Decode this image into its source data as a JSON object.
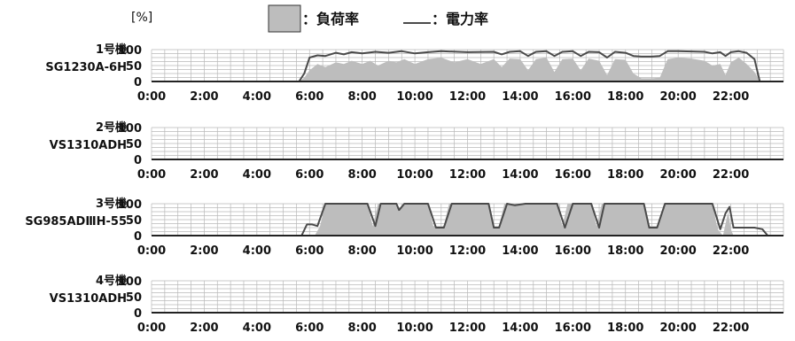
{
  "unit_label": "[%]",
  "legend": {
    "load_label": "：負荷率",
    "power_label": "：電力率",
    "load_color": "#bdbdbd",
    "power_color": "#4a4a4a"
  },
  "chart_data": {
    "type": "area",
    "x_range_hours": [
      0,
      24
    ],
    "x_ticks": [
      "0:00",
      "2:00",
      "4:00",
      "6:00",
      "8:00",
      "10:00",
      "12:00",
      "14:00",
      "16:00",
      "18:00",
      "20:00",
      "22:00"
    ],
    "y_ticks": [
      "100",
      "50",
      "0"
    ],
    "ylim": [
      0,
      100
    ],
    "grid": true,
    "legend_position": "top-center",
    "panels": [
      {
        "line1": "1号機",
        "line2": "SG1230A-6H",
        "load": [
          [
            0,
            0
          ],
          [
            5.6,
            0
          ],
          [
            5.8,
            12
          ],
          [
            6.0,
            35
          ],
          [
            6.3,
            55
          ],
          [
            6.6,
            45
          ],
          [
            7.0,
            60
          ],
          [
            7.3,
            55
          ],
          [
            7.6,
            65
          ],
          [
            8.0,
            55
          ],
          [
            8.3,
            65
          ],
          [
            8.6,
            50
          ],
          [
            9.0,
            65
          ],
          [
            9.3,
            60
          ],
          [
            9.6,
            70
          ],
          [
            10.0,
            55
          ],
          [
            10.5,
            70
          ],
          [
            11.0,
            75
          ],
          [
            11.5,
            60
          ],
          [
            12.0,
            70
          ],
          [
            12.5,
            55
          ],
          [
            13.0,
            70
          ],
          [
            13.3,
            45
          ],
          [
            13.6,
            72
          ],
          [
            14.0,
            70
          ],
          [
            14.3,
            35
          ],
          [
            14.6,
            70
          ],
          [
            15.0,
            75
          ],
          [
            15.3,
            30
          ],
          [
            15.6,
            70
          ],
          [
            16.0,
            72
          ],
          [
            16.3,
            35
          ],
          [
            16.6,
            72
          ],
          [
            17.0,
            65
          ],
          [
            17.3,
            20
          ],
          [
            17.6,
            70
          ],
          [
            18.0,
            68
          ],
          [
            18.3,
            25
          ],
          [
            18.6,
            10
          ],
          [
            19.0,
            10
          ],
          [
            19.3,
            12
          ],
          [
            19.6,
            70
          ],
          [
            20.0,
            75
          ],
          [
            20.5,
            72
          ],
          [
            21.0,
            65
          ],
          [
            21.3,
            50
          ],
          [
            21.6,
            55
          ],
          [
            21.8,
            20
          ],
          [
            22.0,
            60
          ],
          [
            22.3,
            75
          ],
          [
            22.6,
            55
          ],
          [
            22.9,
            30
          ],
          [
            23.1,
            0
          ],
          [
            24.0,
            0
          ]
        ],
        "power": [
          [
            0,
            0
          ],
          [
            5.6,
            0
          ],
          [
            5.8,
            25
          ],
          [
            6.0,
            75
          ],
          [
            6.3,
            82
          ],
          [
            6.6,
            80
          ],
          [
            7.0,
            90
          ],
          [
            7.3,
            85
          ],
          [
            7.6,
            92
          ],
          [
            8.0,
            88
          ],
          [
            8.5,
            93
          ],
          [
            9.0,
            90
          ],
          [
            9.5,
            95
          ],
          [
            10.0,
            88
          ],
          [
            10.5,
            92
          ],
          [
            11.0,
            95
          ],
          [
            12.0,
            92
          ],
          [
            13.0,
            93
          ],
          [
            13.3,
            85
          ],
          [
            13.6,
            93
          ],
          [
            14.0,
            95
          ],
          [
            14.3,
            80
          ],
          [
            14.6,
            93
          ],
          [
            15.0,
            95
          ],
          [
            15.3,
            80
          ],
          [
            15.6,
            93
          ],
          [
            16.0,
            95
          ],
          [
            16.3,
            80
          ],
          [
            16.6,
            93
          ],
          [
            17.0,
            92
          ],
          [
            17.3,
            75
          ],
          [
            17.6,
            93
          ],
          [
            18.0,
            90
          ],
          [
            18.3,
            80
          ],
          [
            18.6,
            78
          ],
          [
            19.0,
            78
          ],
          [
            19.3,
            80
          ],
          [
            19.6,
            95
          ],
          [
            20.0,
            95
          ],
          [
            21.0,
            93
          ],
          [
            21.3,
            88
          ],
          [
            21.6,
            92
          ],
          [
            21.8,
            80
          ],
          [
            22.0,
            92
          ],
          [
            22.3,
            95
          ],
          [
            22.6,
            90
          ],
          [
            22.9,
            70
          ],
          [
            23.1,
            0
          ],
          [
            24.0,
            0
          ]
        ]
      },
      {
        "line1": "2号機",
        "line2": "VS1310ADH",
        "load": [
          [
            0,
            0
          ],
          [
            24.0,
            0
          ]
        ],
        "power": [
          [
            0,
            0
          ],
          [
            24.0,
            0
          ]
        ]
      },
      {
        "line1": "3号機",
        "line2": "SG985ADⅢH-55",
        "load": [
          [
            0,
            0
          ],
          [
            6.2,
            0
          ],
          [
            6.4,
            30
          ],
          [
            6.6,
            100
          ],
          [
            8.2,
            100
          ],
          [
            8.4,
            30
          ],
          [
            8.6,
            100
          ],
          [
            9.3,
            100
          ],
          [
            9.4,
            75
          ],
          [
            9.6,
            100
          ],
          [
            10.5,
            100
          ],
          [
            10.7,
            30
          ],
          [
            11.1,
            30
          ],
          [
            11.3,
            100
          ],
          [
            12.8,
            100
          ],
          [
            13.0,
            30
          ],
          [
            13.2,
            30
          ],
          [
            13.4,
            100
          ],
          [
            15.4,
            100
          ],
          [
            15.6,
            30
          ],
          [
            15.8,
            100
          ],
          [
            16.7,
            100
          ],
          [
            16.9,
            30
          ],
          [
            17.1,
            100
          ],
          [
            18.7,
            100
          ],
          [
            18.9,
            30
          ],
          [
            19.2,
            30
          ],
          [
            19.5,
            100
          ],
          [
            21.3,
            100
          ],
          [
            21.5,
            20
          ],
          [
            21.7,
            0
          ],
          [
            21.9,
            75
          ],
          [
            22.0,
            20
          ],
          [
            22.1,
            0
          ],
          [
            24.0,
            0
          ]
        ],
        "power": [
          [
            0,
            0
          ],
          [
            5.7,
            0
          ],
          [
            5.9,
            35
          ],
          [
            6.1,
            35
          ],
          [
            6.3,
            30
          ],
          [
            6.6,
            100
          ],
          [
            8.2,
            100
          ],
          [
            8.5,
            30
          ],
          [
            8.7,
            100
          ],
          [
            9.3,
            100
          ],
          [
            9.4,
            80
          ],
          [
            9.6,
            100
          ],
          [
            10.5,
            100
          ],
          [
            10.8,
            25
          ],
          [
            11.1,
            25
          ],
          [
            11.4,
            100
          ],
          [
            12.8,
            100
          ],
          [
            13.0,
            25
          ],
          [
            13.2,
            25
          ],
          [
            13.5,
            100
          ],
          [
            13.8,
            95
          ],
          [
            14.2,
            100
          ],
          [
            15.4,
            100
          ],
          [
            15.7,
            25
          ],
          [
            16.0,
            100
          ],
          [
            16.7,
            100
          ],
          [
            17.0,
            25
          ],
          [
            17.2,
            100
          ],
          [
            18.7,
            100
          ],
          [
            18.9,
            25
          ],
          [
            19.2,
            25
          ],
          [
            19.5,
            100
          ],
          [
            21.3,
            100
          ],
          [
            21.6,
            20
          ],
          [
            21.8,
            70
          ],
          [
            21.95,
            90
          ],
          [
            22.1,
            25
          ],
          [
            22.9,
            25
          ],
          [
            23.2,
            20
          ],
          [
            23.4,
            0
          ],
          [
            24.0,
            0
          ]
        ]
      },
      {
        "line1": "4号機",
        "line2": "VS1310ADH",
        "load": [
          [
            0,
            0
          ],
          [
            24.0,
            0
          ]
        ],
        "power": [
          [
            0,
            0
          ],
          [
            24.0,
            0
          ]
        ]
      }
    ]
  }
}
